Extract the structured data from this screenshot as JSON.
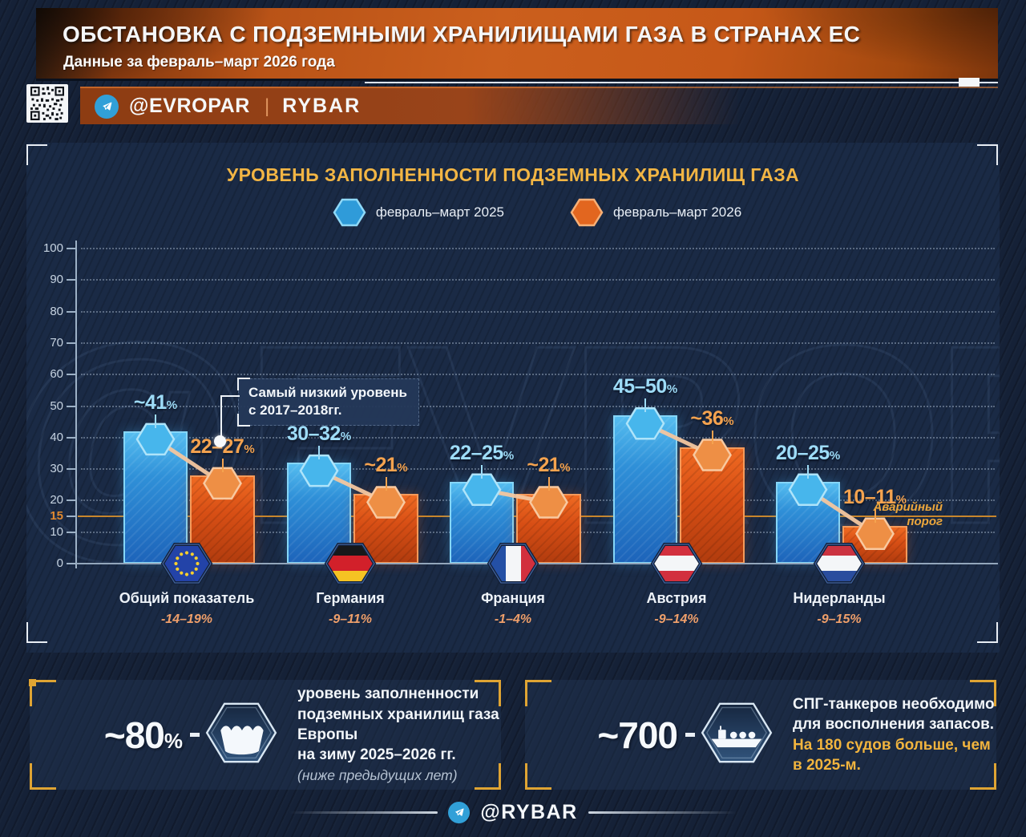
{
  "header": {
    "title": "ОБСТАНОВКА С ПОДЗЕМНЫМИ ХРАНИЛИЩАМИ ГАЗА В СТРАНАХ ЕС",
    "subtitle": "Данные за февраль–март 2026 года"
  },
  "social": {
    "handle": "@EVROPAR",
    "separator": "|",
    "brand": "RYBAR"
  },
  "watermark": "@EVROPAR",
  "chart_data": {
    "type": "bar",
    "title": "УРОВЕНЬ ЗАПОЛНЕННОСТИ ПОДЗЕМНЫХ ХРАНИЛИЩ ГАЗА",
    "legend": [
      {
        "label": "февраль–март 2025",
        "color": "#3aa7e2"
      },
      {
        "label": "февраль–март 2026",
        "color": "#e8702a"
      }
    ],
    "ylim": [
      0,
      100
    ],
    "yticks": [
      0,
      10,
      15,
      20,
      30,
      40,
      50,
      60,
      70,
      80,
      90,
      100
    ],
    "gridlines": [
      10,
      20,
      30,
      40,
      50,
      60,
      70,
      80,
      90,
      100
    ],
    "threshold": {
      "value": 15,
      "label": "Аварийный порог"
    },
    "groups": [
      {
        "country": "Общий показатель",
        "flag": "eu",
        "delta": "-14–19%",
        "y2025": {
          "label": "~41%",
          "value": 41
        },
        "y2026": {
          "label": "22–27%",
          "value": 27
        }
      },
      {
        "country": "Германия",
        "flag": "de",
        "delta": "-9–11%",
        "y2025": {
          "label": "30–32%",
          "value": 31
        },
        "y2026": {
          "label": "~21%",
          "value": 21
        }
      },
      {
        "country": "Франция",
        "flag": "fr",
        "delta": "-1–4%",
        "y2025": {
          "label": "22–25%",
          "value": 25
        },
        "y2026": {
          "label": "~21%",
          "value": 21
        }
      },
      {
        "country": "Австрия",
        "flag": "at",
        "delta": "-9–14%",
        "y2025": {
          "label": "45–50%",
          "value": 46
        },
        "y2026": {
          "label": "~36%",
          "value": 36
        }
      },
      {
        "country": "Нидерланды",
        "flag": "nl",
        "delta": "-9–15%",
        "y2025": {
          "label": "20–25%",
          "value": 25
        },
        "y2026": {
          "label": "10–11%",
          "value": 11
        }
      }
    ],
    "annotation": {
      "line1": "Самый низкий уровень",
      "line2": "с 2017–2018гг."
    }
  },
  "stats": [
    {
      "value": "~80",
      "unit": "%",
      "icon": "gas-storage-water-icon",
      "lines": [
        "уровень заполненности",
        "подземных хранилищ газа Европы",
        "на зиму 2025–2026 гг."
      ],
      "note": "(ниже предыдущих лет)"
    },
    {
      "value": "~700",
      "unit": "",
      "icon": "lng-tanker-icon",
      "lines": [
        "СПГ-танкеров необходимо",
        "для восполнения запасов."
      ],
      "highlight": "На 180 судов больше, чем в 2025-м."
    }
  ],
  "footer": {
    "handle": "@RYBAR"
  },
  "colors": {
    "blue": "#3aa7e2",
    "orange": "#e4571c",
    "gold": "#f2b544",
    "threshold": "#c8862c"
  }
}
